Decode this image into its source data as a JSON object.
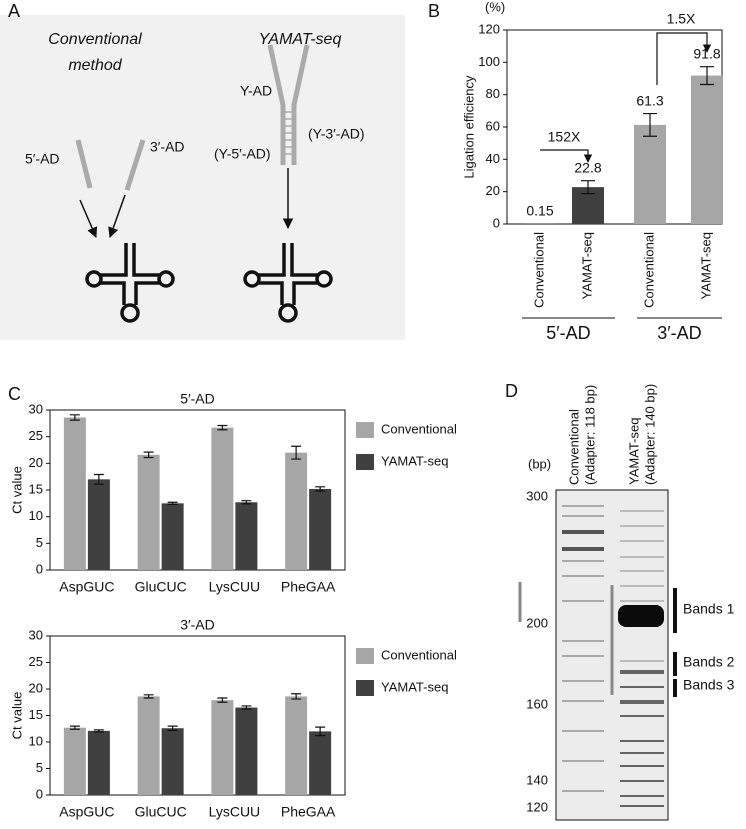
{
  "diagram": {
    "panel": "A",
    "left_title": [
      "Conventional",
      "method"
    ],
    "right_title": "YAMAT-seq",
    "labels": {
      "five_ad": "5′-AD",
      "three_ad": "3′-AD",
      "y_ad": "Y-AD",
      "y_five": "(Y-5′-AD)",
      "y_three": "(Y-3′-AD)"
    }
  },
  "chart_data": [
    {
      "type": "bar",
      "panel": "B",
      "unit_label": "(%)",
      "ylabel": "Ligation efficiency",
      "categories": [
        "Conventional",
        "YAMAT-seq",
        "Conventional",
        "YAMAT-seq"
      ],
      "group_labels": [
        "5′-AD",
        "3′-AD"
      ],
      "values": [
        0.15,
        22.8,
        61.3,
        91.8
      ],
      "errors": [
        null,
        4,
        7,
        5.5
      ],
      "colors": [
        "#404040",
        "#404040",
        "#a6a6a6",
        "#a6a6a6"
      ],
      "ylim": [
        0,
        120
      ],
      "yticks": [
        0,
        20,
        40,
        60,
        80,
        100,
        120
      ],
      "annotations": [
        "152X",
        "1.5X"
      ]
    },
    {
      "type": "grouped_bar",
      "panel": "C",
      "title": "5′-AD",
      "ylabel": "Ct value",
      "categories": [
        "AspGUC",
        "GluCUC",
        "LysCUU",
        "PheGAA"
      ],
      "series": [
        {
          "name": "Conventional",
          "color": "#a6a6a6",
          "values": [
            28.6,
            21.6,
            26.7,
            22
          ],
          "errors": [
            0.5,
            0.5,
            0.4,
            1.2
          ]
        },
        {
          "name": "YAMAT-seq",
          "color": "#404040",
          "values": [
            17,
            12.5,
            12.7,
            15.2
          ],
          "errors": [
            0.9,
            0.2,
            0.3,
            0.4
          ]
        }
      ],
      "ylim": [
        0,
        30
      ],
      "yticks": [
        0,
        5,
        10,
        15,
        20,
        25,
        30
      ]
    },
    {
      "type": "grouped_bar",
      "title": "3′-AD",
      "ylabel": "Ct value",
      "categories": [
        "AspGUC",
        "GluCUC",
        "LysCUU",
        "PheGAA"
      ],
      "series": [
        {
          "name": "Conventional",
          "color": "#a6a6a6",
          "values": [
            12.7,
            18.6,
            17.9,
            18.6
          ],
          "errors": [
            0.3,
            0.3,
            0.4,
            0.5
          ]
        },
        {
          "name": "YAMAT-seq",
          "color": "#404040",
          "values": [
            12.1,
            12.6,
            16.5,
            12
          ],
          "errors": [
            0.2,
            0.4,
            0.3,
            0.8
          ]
        }
      ],
      "ylim": [
        0,
        30
      ],
      "yticks": [
        0,
        5,
        10,
        15,
        20,
        25,
        30
      ]
    }
  ],
  "gel": {
    "panel": "D",
    "unit": "(bp)",
    "ticks": [
      300,
      200,
      160,
      140,
      120
    ],
    "lanes": [
      {
        "name": "Conventional",
        "note": "(Adapter: 118 bp)"
      },
      {
        "name": "YAMAT-seq",
        "note": "(Adapter: 140 bp)"
      }
    ],
    "bands": [
      "Bands 1",
      "Bands 2",
      "Bands 3"
    ]
  }
}
